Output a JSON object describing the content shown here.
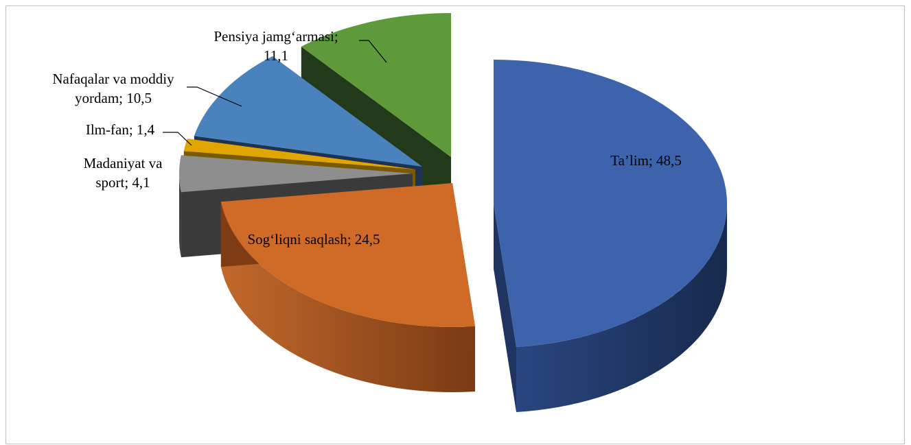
{
  "chart_data": {
    "type": "pie",
    "style": "3d-exploded",
    "title": "",
    "series": [
      {
        "values": [
          48.5,
          24.5,
          4.1,
          1.4,
          10.5,
          11.1
        ],
        "categories": [
          "Ta’lim",
          "Sog‘liqni saqlash",
          "Madaniyat va sport",
          "Ilm-fan",
          "Nafaqalar va moddiy yordam",
          "Pensiya jamg‘armasi"
        ]
      }
    ],
    "slices": [
      {
        "category": "Ta’lim",
        "value": 48.5,
        "label_lines": [
          "Ta’lim; 48,5"
        ],
        "color": "#3d63ad",
        "side_color": "#1f3461"
      },
      {
        "category": "Sog‘liqni saqlash",
        "value": 24.5,
        "label_lines": [
          "Sog‘liqni saqlash; 24,5"
        ],
        "color": "#cf6a27",
        "side_color": "#7e3b14"
      },
      {
        "category": "Madaniyat va sport",
        "value": 4.1,
        "label_lines": [
          "Madaniyat va",
          "sport; 4,1"
        ],
        "color": "#8e8e8e",
        "side_color": "#3a3a3a"
      },
      {
        "category": "Ilm-fan",
        "value": 1.4,
        "label_lines": [
          "Ilm-fan; 1,4"
        ],
        "color": "#e0a500",
        "side_color": "#7a5a00"
      },
      {
        "category": "Nafaqalar va moddiy yordam",
        "value": 10.5,
        "label_lines": [
          "Nafaqalar va moddiy",
          "yordam; 10,5"
        ],
        "color": "#4a82bd",
        "side_color": "#1e3350"
      },
      {
        "category": "Pensiya jamg‘armasi",
        "value": 11.1,
        "label_lines": [
          "Pensiya jamg‘armasi;",
          "11,1"
        ],
        "color": "#5f9a3a",
        "side_color": "#22391a"
      }
    ],
    "legend": "none",
    "data_labels": "category; value"
  }
}
